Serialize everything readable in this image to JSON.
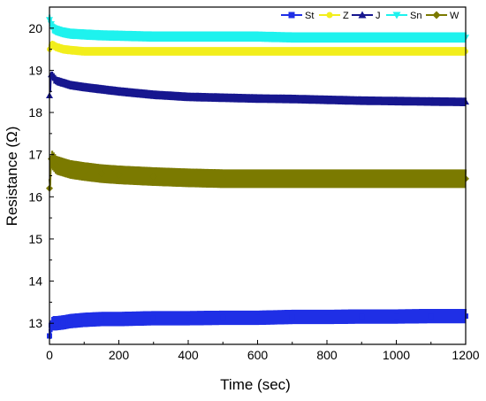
{
  "chart_data": {
    "type": "line",
    "xlabel": "Time (sec)",
    "ylabel": "Resistance (Ω)",
    "xlim": [
      0,
      1200
    ],
    "ylim": [
      12.5,
      20.5
    ],
    "x_ticks": [
      0,
      200,
      400,
      600,
      800,
      1000,
      1200
    ],
    "y_ticks": [
      13,
      14,
      15,
      16,
      17,
      18,
      19,
      20
    ],
    "grid": false,
    "legend_position": "top-right",
    "series": [
      {
        "name": "St",
        "color": "#1f2fe6",
        "marker": "square",
        "x": [
          0,
          5,
          10,
          20,
          40,
          60,
          100,
          150,
          200,
          300,
          400,
          500,
          600,
          700,
          800,
          900,
          1000,
          1100,
          1200
        ],
        "y": [
          12.7,
          12.95,
          13.0,
          13.0,
          13.02,
          13.05,
          13.08,
          13.1,
          13.1,
          13.12,
          13.12,
          13.13,
          13.13,
          13.15,
          13.15,
          13.16,
          13.16,
          13.17,
          13.17
        ],
        "band": 0.17
      },
      {
        "name": "Z",
        "color": "#f2ee1c",
        "marker": "circle",
        "x": [
          0,
          5,
          10,
          20,
          40,
          60,
          100,
          150,
          200,
          300,
          400,
          500,
          600,
          700,
          800,
          900,
          1000,
          1100,
          1200
        ],
        "y": [
          19.5,
          19.6,
          19.6,
          19.55,
          19.5,
          19.48,
          19.45,
          19.45,
          19.45,
          19.45,
          19.45,
          19.45,
          19.45,
          19.45,
          19.45,
          19.45,
          19.45,
          19.45,
          19.45
        ],
        "band": 0.1
      },
      {
        "name": "J",
        "color": "#17178f",
        "marker": "triangle",
        "x": [
          0,
          5,
          10,
          20,
          40,
          60,
          100,
          150,
          200,
          300,
          400,
          500,
          600,
          700,
          800,
          900,
          1000,
          1100,
          1200
        ],
        "y": [
          18.4,
          18.9,
          18.85,
          18.75,
          18.7,
          18.65,
          18.6,
          18.55,
          18.5,
          18.42,
          18.37,
          18.35,
          18.33,
          18.32,
          18.3,
          18.28,
          18.27,
          18.26,
          18.25
        ],
        "band": 0.1
      },
      {
        "name": "Sn",
        "color": "#1ef2ee",
        "marker": "triangle-down",
        "x": [
          0,
          5,
          10,
          20,
          40,
          60,
          100,
          150,
          200,
          300,
          400,
          500,
          600,
          700,
          800,
          900,
          1000,
          1100,
          1200
        ],
        "y": [
          20.2,
          20.1,
          20.0,
          19.95,
          19.9,
          19.87,
          19.85,
          19.83,
          19.82,
          19.8,
          19.8,
          19.8,
          19.8,
          19.78,
          19.78,
          19.78,
          19.78,
          19.78,
          19.78
        ],
        "band": 0.12
      },
      {
        "name": "W",
        "color": "#7b7a00",
        "marker": "diamond",
        "x": [
          0,
          5,
          10,
          20,
          40,
          60,
          100,
          150,
          200,
          300,
          400,
          500,
          600,
          700,
          800,
          900,
          1000,
          1100,
          1200
        ],
        "y": [
          16.2,
          16.9,
          16.85,
          16.75,
          16.7,
          16.65,
          16.6,
          16.55,
          16.52,
          16.48,
          16.45,
          16.43,
          16.43,
          16.43,
          16.43,
          16.43,
          16.43,
          16.43,
          16.43
        ],
        "band": 0.22
      }
    ]
  }
}
